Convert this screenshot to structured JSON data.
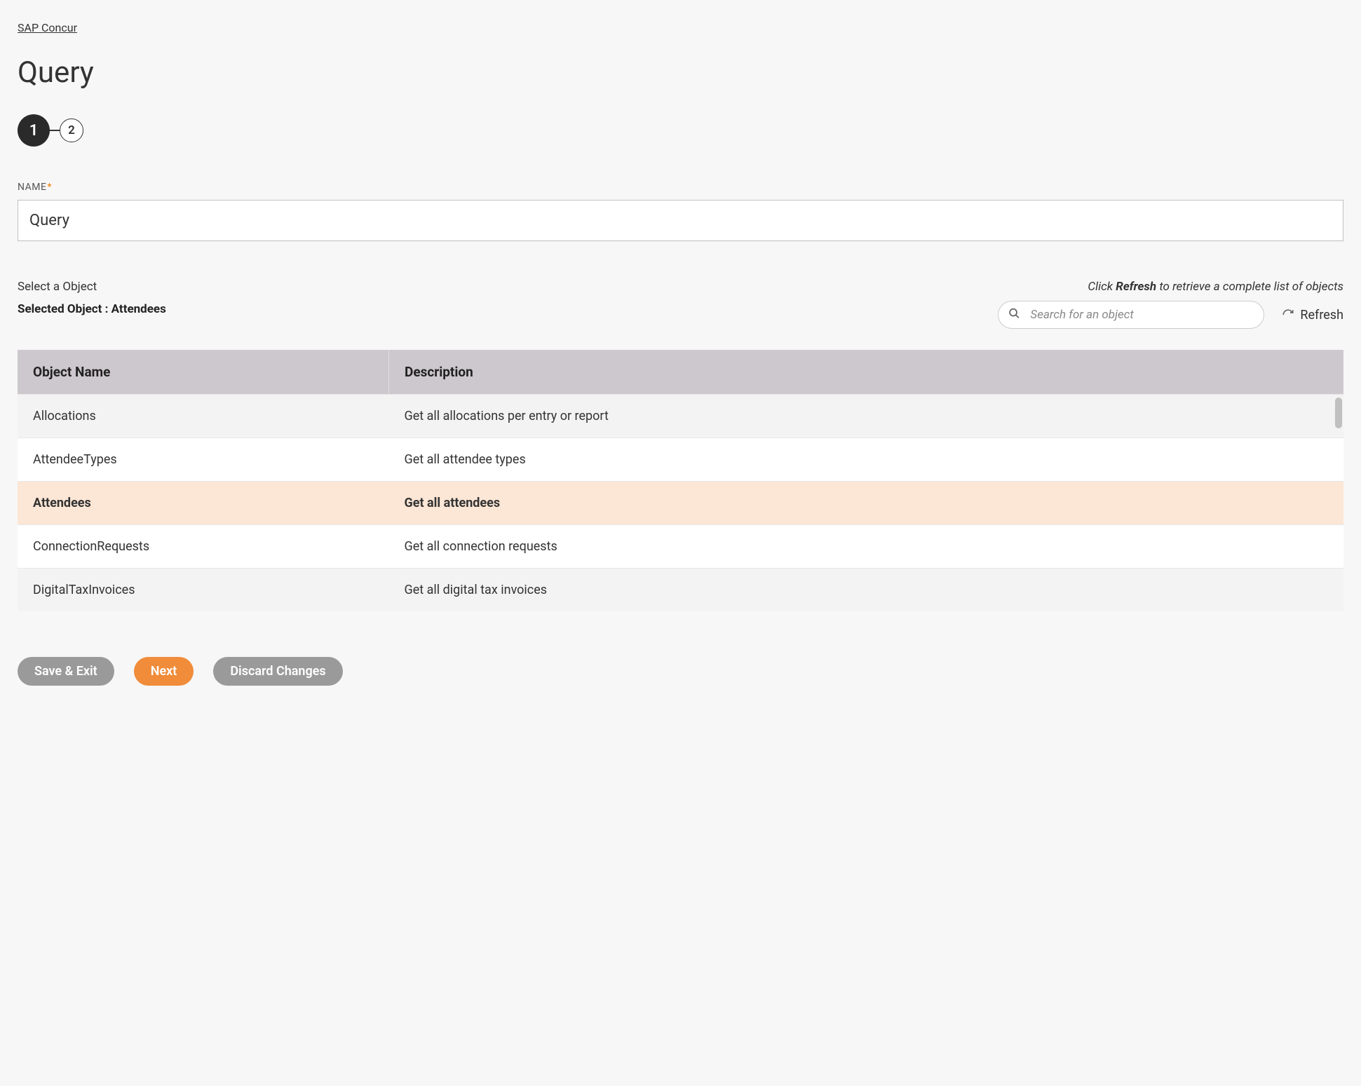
{
  "breadcrumb": {
    "label": "SAP Concur"
  },
  "page": {
    "title": "Query"
  },
  "stepper": {
    "steps": [
      {
        "num": "1",
        "active": true
      },
      {
        "num": "2",
        "active": false
      }
    ]
  },
  "nameField": {
    "label": "NAME",
    "required": "*",
    "value": "Query"
  },
  "objectSection": {
    "selectLabel": "Select a Object",
    "selectedPrefix": "Selected Object : ",
    "selectedValue": "Attendees",
    "refreshHint": {
      "pre": "Click ",
      "bold": "Refresh",
      "post": " to retrieve a complete list of objects"
    },
    "search": {
      "placeholder": "Search for an object"
    },
    "refreshBtn": "Refresh",
    "columns": [
      "Object Name",
      "Description"
    ],
    "rows": [
      {
        "name": "Allocations",
        "desc": "Get all allocations per entry or report",
        "selected": false
      },
      {
        "name": "AttendeeTypes",
        "desc": "Get all attendee types",
        "selected": false
      },
      {
        "name": "Attendees",
        "desc": "Get all attendees",
        "selected": true
      },
      {
        "name": "ConnectionRequests",
        "desc": "Get all connection requests",
        "selected": false
      },
      {
        "name": "DigitalTaxInvoices",
        "desc": "Get all digital tax invoices",
        "selected": false
      }
    ]
  },
  "buttons": {
    "saveExit": "Save & Exit",
    "next": "Next",
    "discard": "Discard Changes"
  },
  "colors": {
    "accent": "#f08c3a",
    "secondary": "#9a9a9a",
    "selectedRow": "#fce6d5",
    "headerBg": "#cdc8cd",
    "pageBg": "#f7f7f7"
  }
}
